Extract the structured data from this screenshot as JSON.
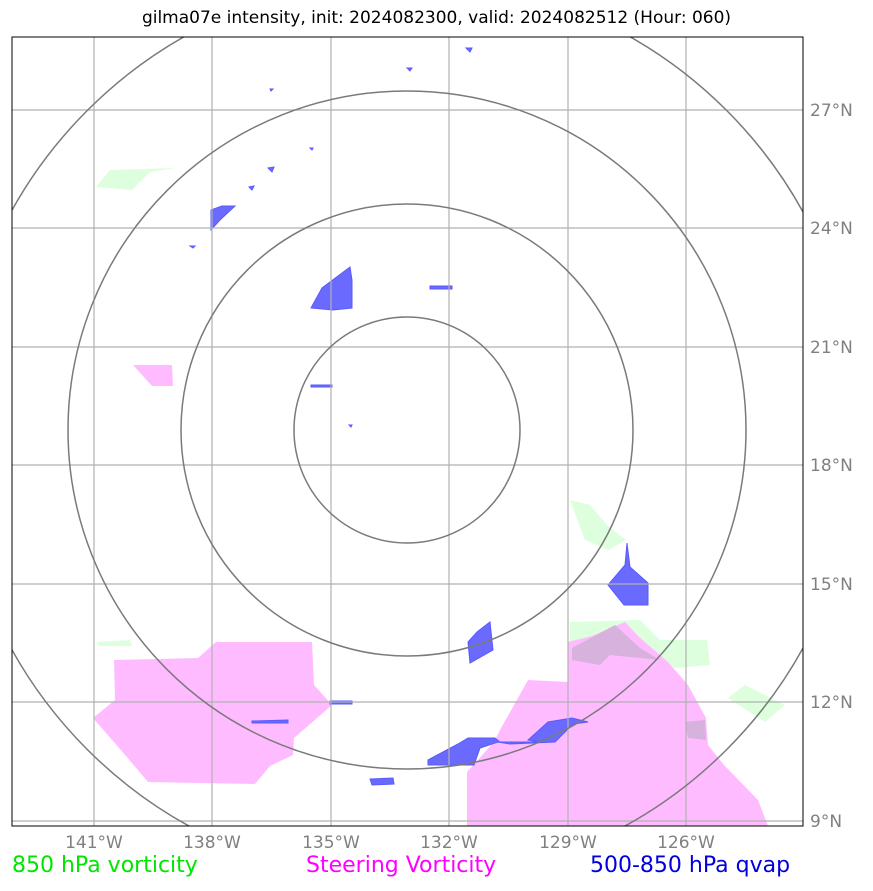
{
  "title": "gilma07e intensity, init: 2024082300, valid: 2024082512 (Hour: 060)",
  "lon_labels": [
    "141°W",
    "138°W",
    "135°W",
    "132°W",
    "129°W",
    "126°W"
  ],
  "lat_labels": [
    "27°N",
    "24°N",
    "21°N",
    "18°N",
    "15°N",
    "12°N",
    "9°N"
  ],
  "legend": {
    "vorticity_850": "850 hPa vorticity",
    "steering": "Steering Vorticity",
    "qvap": "500-850 hPa qvap"
  },
  "colors": {
    "vorticity_850": "#00e600",
    "steering": "#ff00ff",
    "qvap": "#0000dd",
    "vort_fill": "#ddffdd",
    "steer_fill": "#ffbbff",
    "qvap_fill": "#6a6aff"
  }
}
